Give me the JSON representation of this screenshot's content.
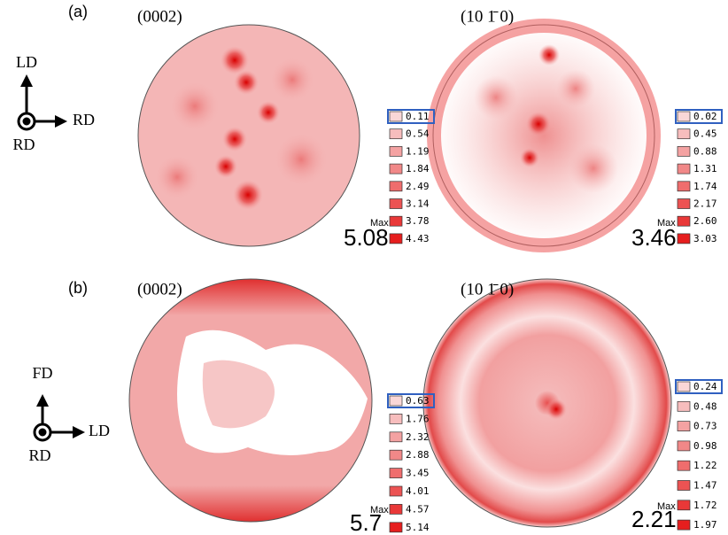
{
  "panels": [
    {
      "label": "(a)",
      "axes": {
        "up": "LD",
        "right": "RD",
        "center": "RD"
      },
      "figures": [
        {
          "title": "(0002)",
          "levels": [
            "0.11",
            "0.54",
            "1.19",
            "1.84",
            "2.49",
            "3.14",
            "3.78",
            "4.43"
          ],
          "max_label": "Max",
          "max": "5.08"
        },
        {
          "title": "(10 1̄ 0)",
          "levels": [
            "0.02",
            "0.45",
            "0.88",
            "1.31",
            "1.74",
            "2.17",
            "2.60",
            "3.03"
          ],
          "max_label": "Max",
          "max": "3.46"
        }
      ]
    },
    {
      "label": "(b)",
      "axes": {
        "up": "FD",
        "right": "LD",
        "center": "RD"
      },
      "figures": [
        {
          "title": "(0002)",
          "levels": [
            "0.63",
            "1.76",
            "2.32",
            "2.88",
            "3.45",
            "4.01",
            "4.57",
            "5.14"
          ],
          "max_label": "Max",
          "max": "5.7"
        },
        {
          "title": "(10 1̄ 0)",
          "levels": [
            "0.24",
            "0.48",
            "0.73",
            "0.98",
            "1.22",
            "1.47",
            "1.72",
            "1.97"
          ],
          "max_label": "Max",
          "max": "2.21"
        }
      ]
    }
  ]
}
